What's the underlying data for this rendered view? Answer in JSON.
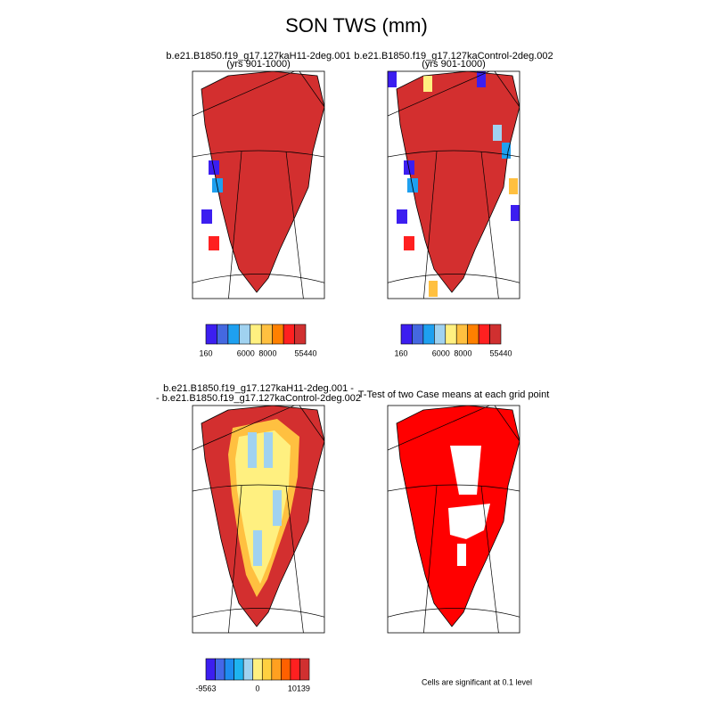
{
  "title": "SON TWS (mm)",
  "panels": [
    {
      "title": [
        "b.e21.B1850.f19_g17.127kaH11-2deg.001",
        "(yrs 901-1000)"
      ],
      "colorbar": {
        "colors": [
          "#3c1ef0",
          "#4468e0",
          "#1ea0f0",
          "#a0d2f0",
          "#fff080",
          "#ffc040",
          "#ff8000",
          "#ff2020",
          "#d03030"
        ],
        "labels": [
          "160",
          "6000",
          "8000",
          "55440"
        ]
      }
    },
    {
      "title": [
        "b.e21.B1850.f19_g17.127kaControl-2deg.002",
        "(yrs 901-1000)"
      ],
      "colorbar": {
        "colors": [
          "#3c1ef0",
          "#4468e0",
          "#1ea0f0",
          "#a0d2f0",
          "#fff080",
          "#ffc040",
          "#ff8000",
          "#ff2020",
          "#d03030"
        ],
        "labels": [
          "160",
          "6000",
          "8000",
          "55440"
        ]
      }
    },
    {
      "title": [
        "b.e21.B1850.f19_g17.127kaH11-2deg.001 -",
        "- b.e21.B1850.f19_g17.127kaControl-2deg.002"
      ],
      "colorbar": {
        "colors": [
          "#3c1ef0",
          "#4468e8",
          "#1e8cf0",
          "#1eb4f0",
          "#a0d2f0",
          "#fff080",
          "#ffd040",
          "#ffa020",
          "#ff6000",
          "#ff2020",
          "#d03030"
        ],
        "labels": [
          "-9563",
          "0",
          "10139"
        ]
      }
    },
    {
      "title": [
        "T-Test of two Case means at each grid point"
      ]
    }
  ],
  "footnote": "Cells are significant at 0.1 level"
}
